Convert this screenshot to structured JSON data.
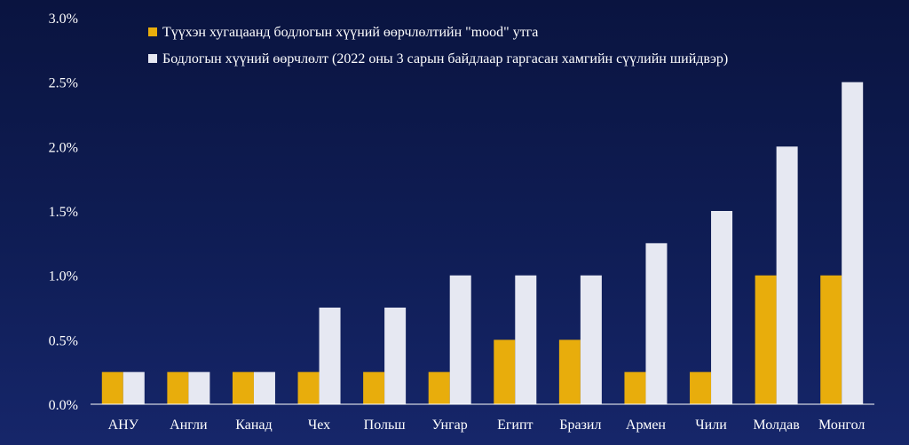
{
  "chart_data": {
    "type": "bar",
    "categories": [
      "АНУ",
      "Англи",
      "Канад",
      "Чех",
      "Польш",
      "Унгар",
      "Египт",
      "Бразил",
      "Армен",
      "Чили",
      "Молдав",
      "Монгол"
    ],
    "series": [
      {
        "name": "Түүхэн хугацаанд бодлогын хүүний өөрчлөлтийн \"mood\" утга",
        "color": "#e8ad0c",
        "values": [
          0.25,
          0.25,
          0.25,
          0.25,
          0.25,
          0.25,
          0.5,
          0.5,
          0.25,
          0.25,
          1.0,
          1.0
        ]
      },
      {
        "name": "Бодлогын хүүний өөрчлөлт (2022 оны 3 сарын байдлаар гаргасан хамгийн сүүлийн шийдвэр)",
        "color": "#e6e8f2",
        "values": [
          0.25,
          0.25,
          0.25,
          0.75,
          0.75,
          1.0,
          1.0,
          1.0,
          1.25,
          1.5,
          2.0,
          2.5
        ]
      }
    ],
    "ylim": [
      0,
      3.0
    ],
    "yticks": [
      "0.0%",
      "0.5%",
      "1.0%",
      "1.5%",
      "2.0%",
      "2.5%",
      "3.0%"
    ],
    "ytick_values": [
      0,
      0.5,
      1.0,
      1.5,
      2.0,
      2.5,
      3.0
    ],
    "legend_position": "top-center",
    "grid": false,
    "axis_color": "#ffffff"
  }
}
